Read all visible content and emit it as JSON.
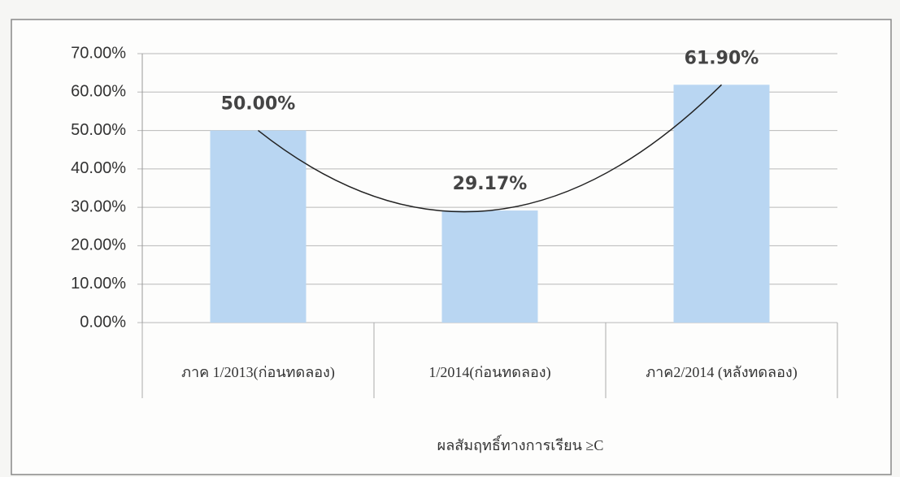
{
  "chart_data": {
    "type": "bar",
    "x_label": "ผลสัมฤทธิ์ทางการเรียน ≥C",
    "categories": [
      "ภาค 1/2013(ก่อนทดลอง)",
      "1/2014(ก่อนทดลอง)",
      "ภาค2/2014 (หลังทดลอง)"
    ],
    "values": [
      50,
      29.17,
      61.9
    ],
    "value_labels": [
      "50.00%",
      "29.17%",
      "61.90%"
    ],
    "color": "#b9d6f2",
    "trendline": "polynomial",
    "ylim": [
      0,
      70
    ],
    "yticks": [
      {
        "value": 0,
        "label": "0.00%"
      },
      {
        "value": 10,
        "label": "10.00%"
      },
      {
        "value": 20,
        "label": "20.00%"
      },
      {
        "value": 30,
        "label": "30.00%"
      },
      {
        "value": 40,
        "label": "40.00%"
      },
      {
        "value": 50,
        "label": "50.00%"
      },
      {
        "value": 60,
        "label": "60.00%"
      },
      {
        "value": 70,
        "label": "70.00%"
      }
    ],
    "grid": true
  }
}
